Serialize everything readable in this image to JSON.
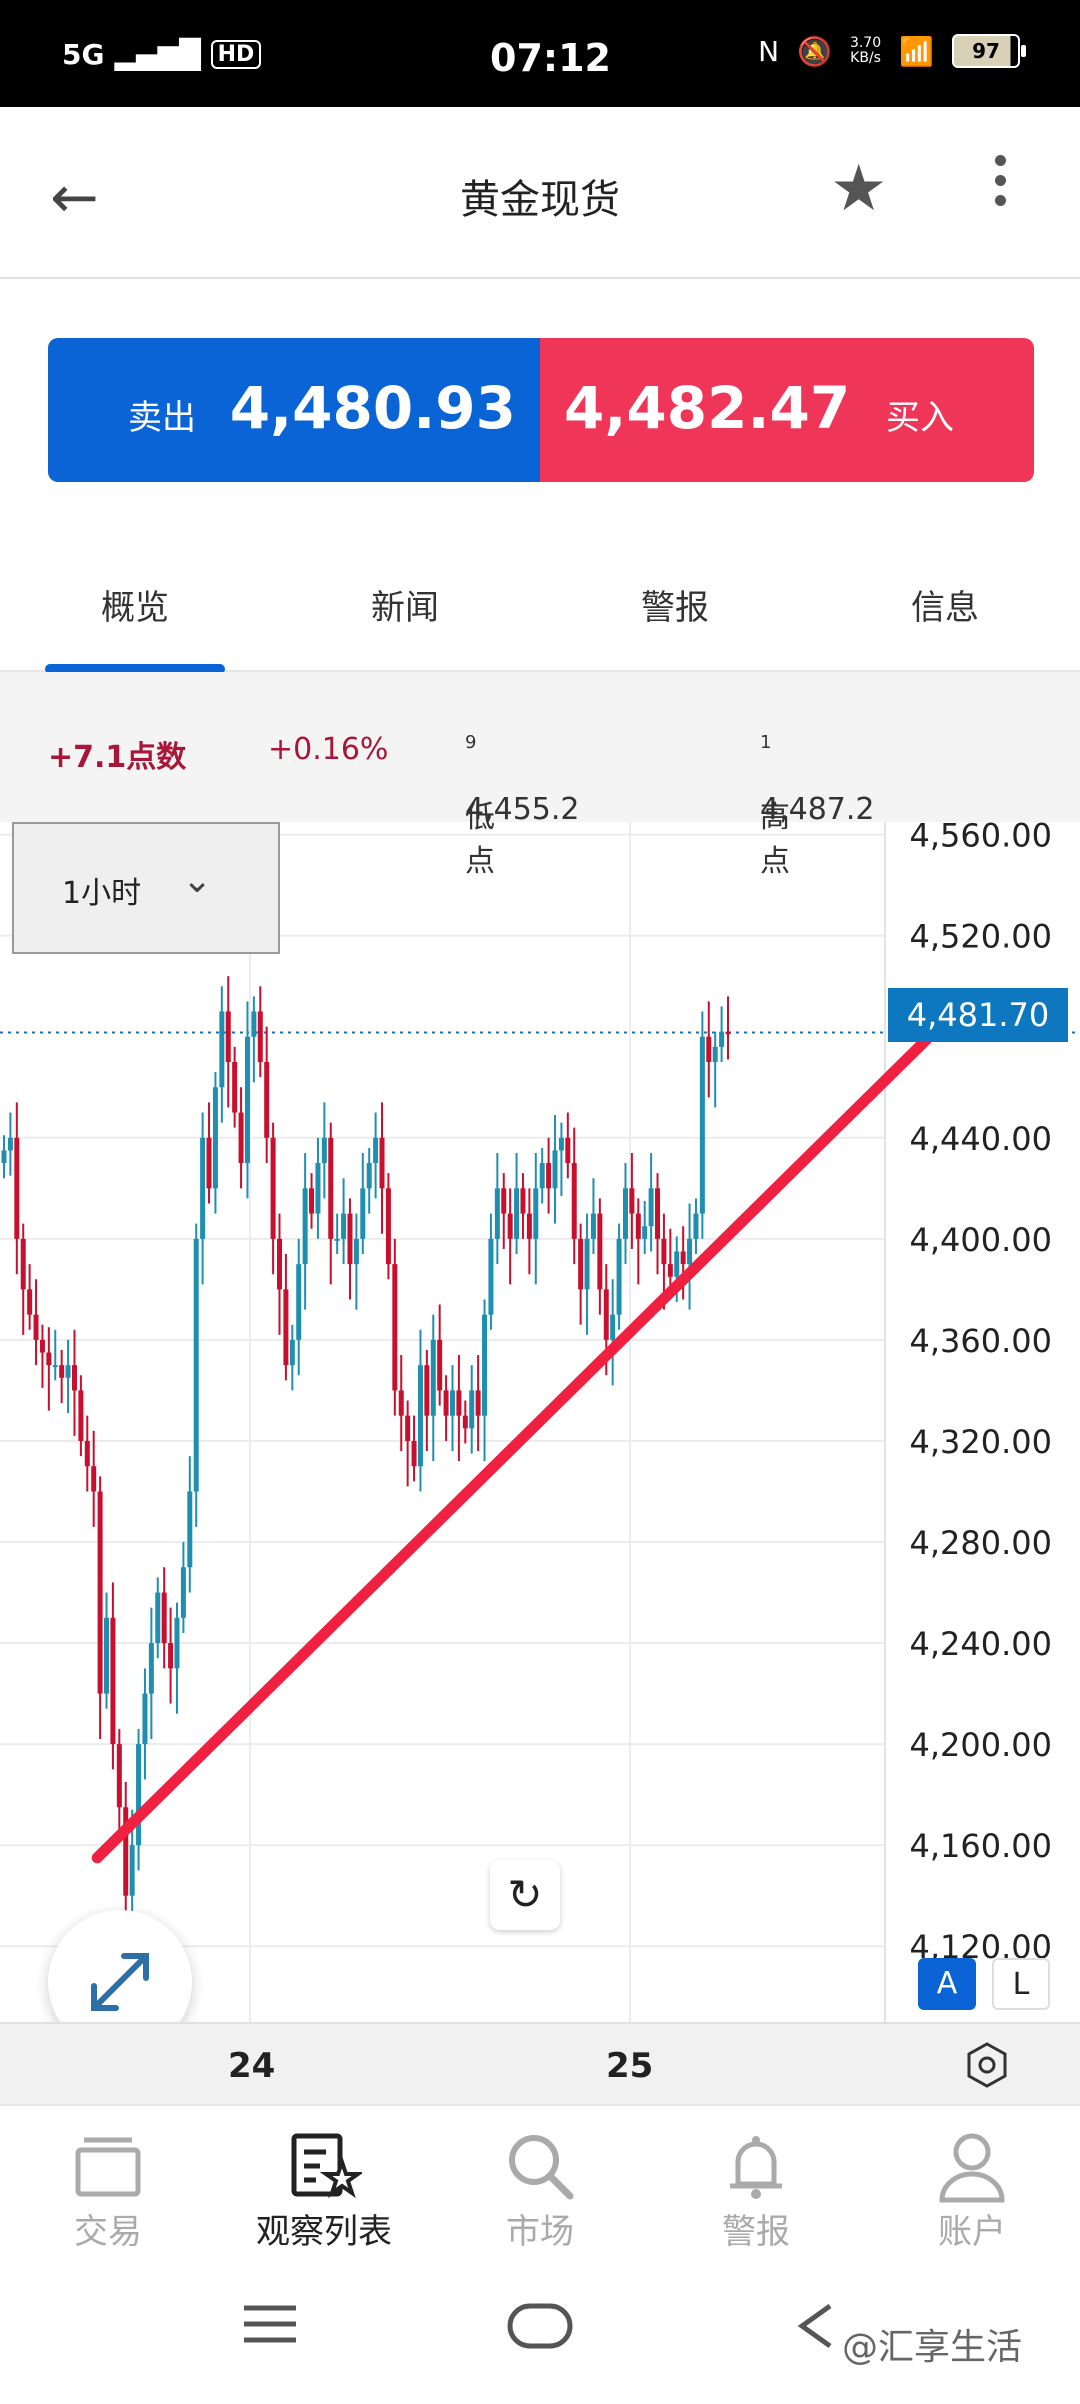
{
  "status_bar": {
    "signal": "5G",
    "hd_badge": "HD",
    "time": "07:12",
    "net_speed_value": "3.70",
    "net_speed_unit": "KB/s",
    "battery": "97"
  },
  "header": {
    "title": "黄金现货"
  },
  "quote": {
    "sell_label": "卖出",
    "sell_price": "4,480.93",
    "buy_price": "4,482.47",
    "buy_label": "买入",
    "sell_color": "#0a64d6",
    "buy_color": "#ef3659"
  },
  "tabs": [
    "概览",
    "新闻",
    "警报",
    "信息"
  ],
  "active_tab": "概览",
  "stats": {
    "change_points": "+7.1点数",
    "change_percent": "+0.16%",
    "low_label": "低点",
    "low_value": "4,455.2",
    "low_sup": "9",
    "high_label": "高点",
    "high_value": "4,487.2",
    "high_sup": "1"
  },
  "timeframe": {
    "label": "1小时"
  },
  "chart_data": {
    "type": "candlestick",
    "y_ticks": [
      "4,560.00",
      "4,520.00",
      "4,481.70",
      "4,440.00",
      "4,400.00",
      "4,360.00",
      "4,320.00",
      "4,280.00",
      "4,240.00",
      "4,200.00",
      "4,160.00",
      "4,120.00"
    ],
    "ylim": [
      4090,
      4565
    ],
    "x_ticks": [
      "24",
      "25"
    ],
    "current_price": "4,481.70",
    "up_color": "#1f8fb0",
    "down_color": "#c8102e",
    "trendline_color": "#f02040",
    "trendline": [
      {
        "x": 0.09,
        "y": 4155
      },
      {
        "x": 0.87,
        "y": 4484
      }
    ],
    "close_series": [
      4435,
      4440,
      4400,
      4380,
      4370,
      4360,
      4355,
      4350,
      4350,
      4345,
      4350,
      4340,
      4320,
      4310,
      4300,
      4220,
      4250,
      4200,
      4175,
      4140,
      4160,
      4200,
      4220,
      4240,
      4260,
      4240,
      4230,
      4250,
      4270,
      4300,
      4400,
      4440,
      4420,
      4460,
      4490,
      4470,
      4450,
      4430,
      4480,
      4490,
      4470,
      4440,
      4400,
      4380,
      4350,
      4360,
      4390,
      4420,
      4410,
      4430,
      4440,
      4400,
      4400,
      4410,
      4390,
      4400,
      4420,
      4430,
      4440,
      4420,
      4390,
      4340,
      4330,
      4320,
      4310,
      4350,
      4330,
      4360,
      4340,
      4330,
      4340,
      4330,
      4325,
      4340,
      4330,
      4370,
      4400,
      4420,
      4410,
      4400,
      4420,
      4410,
      4400,
      4420,
      4430,
      4420,
      4435,
      4440,
      4430,
      4400,
      4380,
      4400,
      4410,
      4380,
      4360,
      4370,
      4400,
      4420,
      4410,
      4400,
      4405,
      4420,
      4400,
      4390,
      4385,
      4395,
      4390,
      4400,
      4410,
      4480,
      4470,
      4476,
      4482,
      4481
    ]
  },
  "controls": {
    "auto_btn": "A",
    "log_btn": "L"
  },
  "bottom_nav": [
    {
      "label": "交易",
      "icon": "trade-icon"
    },
    {
      "label": "观察列表",
      "icon": "watchlist-icon"
    },
    {
      "label": "市场",
      "icon": "search-icon"
    },
    {
      "label": "警报",
      "icon": "bell-icon"
    },
    {
      "label": "账户",
      "icon": "user-icon"
    }
  ],
  "active_nav": "观察列表",
  "watermark": "@汇享生活"
}
